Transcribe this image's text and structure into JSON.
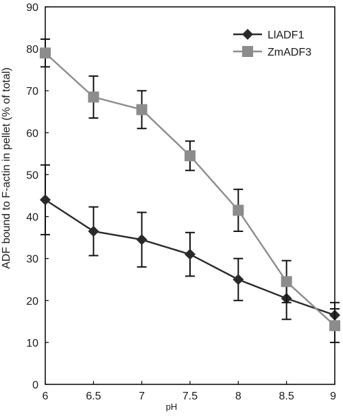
{
  "chart_data": {
    "type": "line",
    "title": "",
    "xlabel": "pH",
    "ylabel": "ADF bound to F-actin in pellet (% of total)",
    "x": [
      6,
      6.5,
      7,
      7.5,
      8,
      8.5,
      9
    ],
    "x_tick_labels": [
      "6",
      "6.5",
      "7",
      "7.5",
      "8",
      "8.5",
      "9"
    ],
    "y_ticks": [
      0,
      10,
      20,
      30,
      40,
      50,
      60,
      70,
      80,
      90
    ],
    "y_tick_labels": [
      "0",
      "10",
      "20",
      "30",
      "40",
      "50",
      "60",
      "70",
      "80",
      "90"
    ],
    "xlim": [
      6,
      9
    ],
    "ylim": [
      0,
      90
    ],
    "grid": false,
    "legend_position": "top-right",
    "series": [
      {
        "name": "LlADF1",
        "color": "#2a2a2a",
        "marker": "diamond",
        "values": [
          44,
          36.5,
          34.5,
          31,
          25,
          20.5,
          16.5
        ],
        "error": [
          8.3,
          5.8,
          6.5,
          5.2,
          5,
          5,
          3
        ]
      },
      {
        "name": "ZmADF3",
        "color": "#8c8c8c",
        "marker": "square",
        "values": [
          79,
          68.5,
          65.5,
          54.5,
          41.5,
          24.5,
          14
        ],
        "error": [
          3.3,
          5,
          4.5,
          3.5,
          5,
          5,
          4
        ]
      }
    ]
  }
}
